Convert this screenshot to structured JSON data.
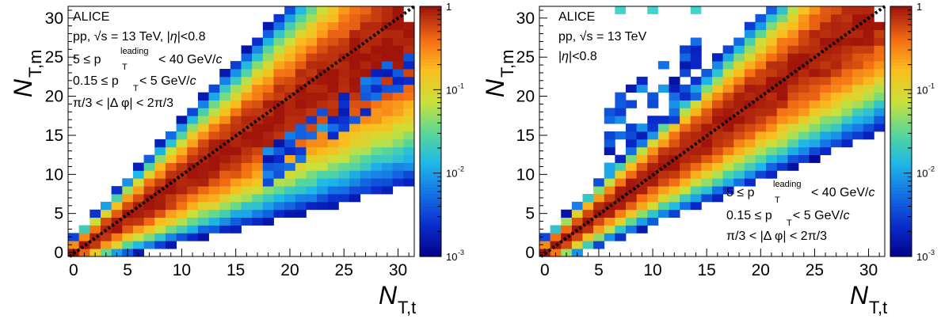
{
  "chart_data": [
    {
      "type": "heatmap",
      "xlabel_main": "N",
      "xlabel_sub": "T,t",
      "ylabel_main": "N",
      "ylabel_sub": "T,m",
      "xlim": [
        -0.5,
        31.5
      ],
      "ylim": [
        -0.5,
        31.5
      ],
      "xticks": [
        "0",
        "5",
        "10",
        "15",
        "20",
        "25",
        "30"
      ],
      "yticks": [
        "0",
        "5",
        "10",
        "15",
        "20",
        "25",
        "30"
      ],
      "zscale": "log",
      "zlim": [
        0.001,
        1
      ],
      "zticks": [
        "1",
        "10",
        "10",
        "10"
      ],
      "zticks_exp": [
        "",
        "-1",
        "-2",
        "-3"
      ],
      "diagonal": "y = x dotted line",
      "annotation": {
        "experiment": "ALICE",
        "system": "pp, √s = 13 TeV, |η|<0.8",
        "system_a": "pp,",
        "system_b": "√s",
        "system_c": "= 13 TeV, |",
        "system_d": "η",
        "system_e": "|<0.8",
        "leading_a": "5 ≤ p",
        "leading_sup": "leading",
        "leading_sub": "T",
        "leading_b": " < 40 GeV/",
        "leading_c": "c",
        "pt_a": "0.15 ≤ p",
        "pt_sub": "T",
        "pt_b": " < 5 GeV/",
        "pt_c": "c",
        "phi": "π/3 < |Δ φ| < 2π/3"
      }
    },
    {
      "type": "heatmap",
      "xlabel_main": "N",
      "xlabel_sub": "T,t",
      "ylabel_main": "N",
      "ylabel_sub": "T,m",
      "xlim": [
        -0.5,
        31.5
      ],
      "ylim": [
        -0.5,
        31.5
      ],
      "xticks": [
        "0",
        "5",
        "10",
        "15",
        "20",
        "25",
        "30"
      ],
      "yticks": [
        "0",
        "5",
        "10",
        "15",
        "20",
        "25",
        "30"
      ],
      "zscale": "log",
      "zlim": [
        0.001,
        1
      ],
      "zticks": [
        "1",
        "10",
        "10",
        "10"
      ],
      "zticks_exp": [
        "",
        "-1",
        "-2",
        "-3"
      ],
      "diagonal": "y = x dotted line",
      "annotation": {
        "experiment": "ALICE",
        "system_a": "pp,",
        "system_b": "√s",
        "system_c": "= 13 TeV",
        "eta_a": "|",
        "eta_b": "η",
        "eta_c": "|<0.8",
        "leading_a": "5 ≤ p",
        "leading_sup": "leading",
        "leading_sub": "T",
        "leading_b": " < 40 GeV/",
        "leading_c": "c",
        "pt_a": "0.15 ≤ p",
        "pt_sub": "T",
        "pt_b": " < 5 GeV/",
        "pt_c": "c",
        "phi": "π/3 < |Δ φ| < 2π/3"
      }
    }
  ]
}
